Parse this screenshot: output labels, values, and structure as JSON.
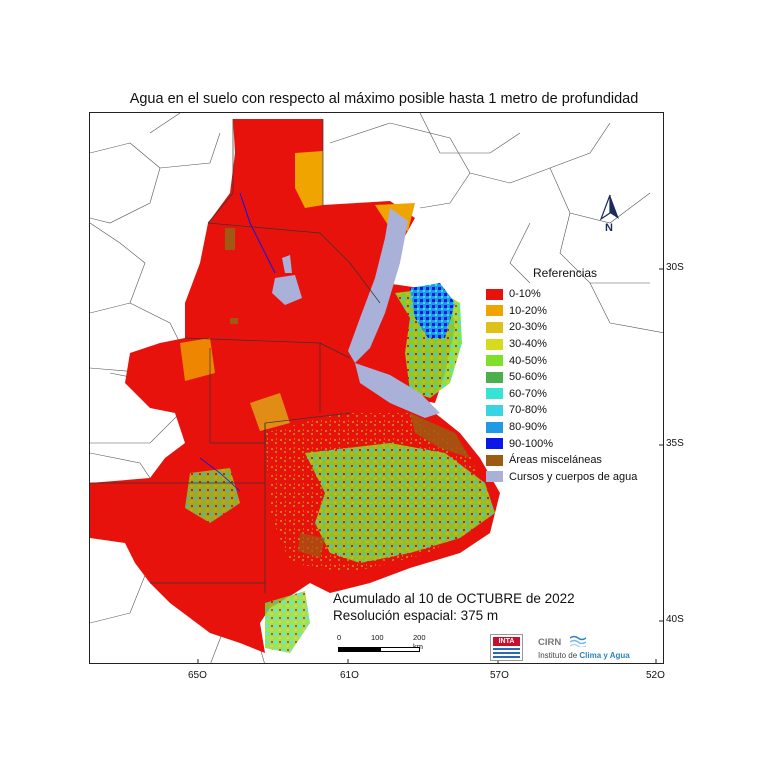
{
  "title": "Agua en el suelo con respecto al máximo posible hasta 1 metro de profundidad",
  "legend": {
    "title": "Referencias",
    "items": [
      {
        "label": "0-10%",
        "color": "#e8120d"
      },
      {
        "label": "10-20%",
        "color": "#f0a400"
      },
      {
        "label": "20-30%",
        "color": "#dec21a"
      },
      {
        "label": "30-40%",
        "color": "#d6dc1d"
      },
      {
        "label": "40-50%",
        "color": "#7fe02a"
      },
      {
        "label": "50-60%",
        "color": "#4caf4e"
      },
      {
        "label": "60-70%",
        "color": "#36e3d4"
      },
      {
        "label": "70-80%",
        "color": "#3ad3e3"
      },
      {
        "label": "80-90%",
        "color": "#1f9ae3"
      },
      {
        "label": "90-100%",
        "color": "#0a17e6"
      },
      {
        "label": "Áreas misceláneas",
        "color": "#9e5a12"
      },
      {
        "label": "Cursos y cuerpos de agua",
        "color": "#a9b1d9"
      }
    ]
  },
  "axes": {
    "x_ticks": [
      "65O",
      "61O",
      "57O",
      "52O"
    ],
    "y_ticks": [
      "30S",
      "35S",
      "40S"
    ]
  },
  "accumulation": "Acumulado al 10 de OCTUBRE de 2022",
  "resolution": "Resolución espacial: 375 m",
  "scale": {
    "labels": [
      "0",
      "100",
      "200 km"
    ]
  },
  "north_label": "N",
  "logos": {
    "inta": "INTA",
    "cirn": "CIRN",
    "instituto_prefix": "Instituto de",
    "instituto_name": "Clima y Agua"
  }
}
